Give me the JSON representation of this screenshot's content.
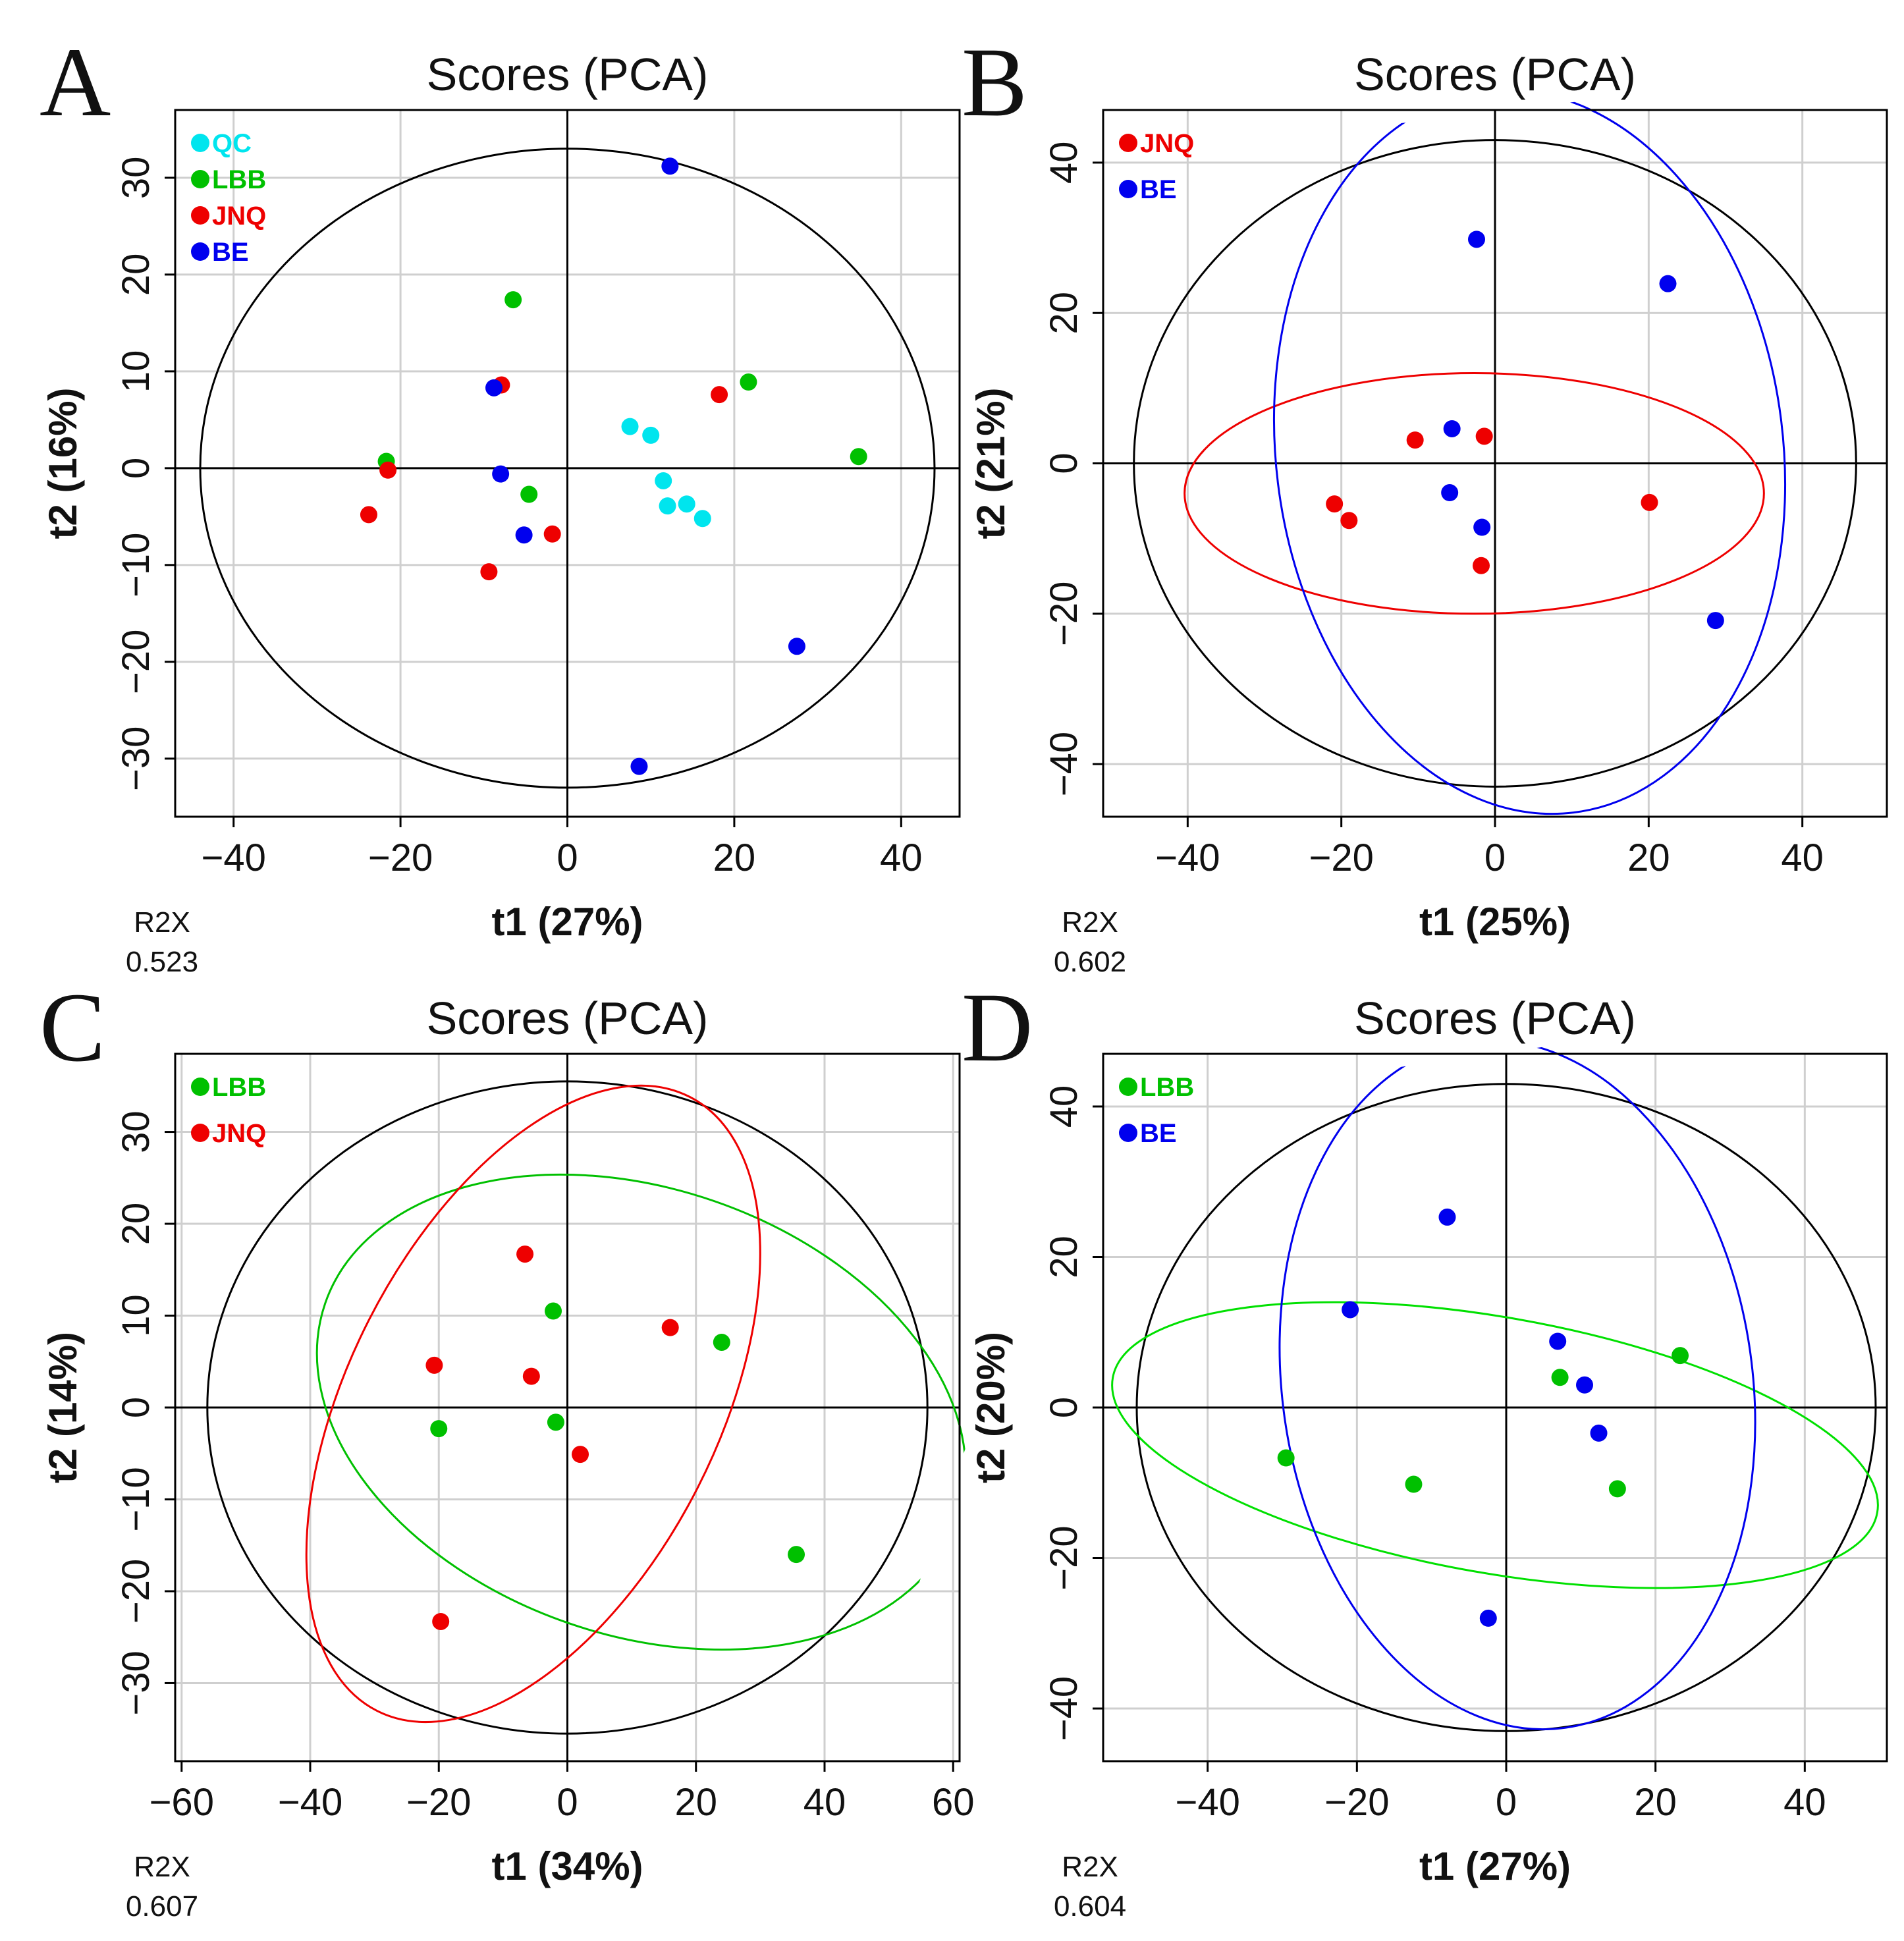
{
  "chart_data": [
    {
      "panel": "A",
      "type": "scatter",
      "title": "Scores (PCA)",
      "xlabel": "t1 (27%)",
      "ylabel": "t2 (16%)",
      "r2x_label": "R2X",
      "r2x_value": "0.523",
      "xlim": [
        -47,
        47
      ],
      "ylim": [
        -36,
        37
      ],
      "xticks": [
        -40,
        -20,
        0,
        20,
        40
      ],
      "yticks": [
        -30,
        -20,
        -10,
        0,
        10,
        20,
        30
      ],
      "grid": true,
      "legend_position": "top-left",
      "hotelling_ellipse": {
        "cx": 0,
        "cy": 0,
        "rx": 44,
        "ry": 33,
        "color": "#000000"
      },
      "group_ellipses": [],
      "series": [
        {
          "name": "QC",
          "color": "#00e5ee",
          "points": [
            [
              7.5,
              4.3
            ],
            [
              10,
              3.4
            ],
            [
              11.5,
              -1.3
            ],
            [
              12,
              -3.9
            ],
            [
              14.3,
              -3.7
            ],
            [
              16.2,
              -5.2
            ]
          ]
        },
        {
          "name": "LBB",
          "color": "#00c000",
          "points": [
            [
              -6.5,
              17.4
            ],
            [
              21.7,
              8.9
            ],
            [
              -21.7,
              0.7
            ],
            [
              34.9,
              1.2
            ],
            [
              -4.6,
              -2.7
            ]
          ]
        },
        {
          "name": "JNQ",
          "color": "#ee0000",
          "points": [
            [
              -7.9,
              8.6
            ],
            [
              18.2,
              7.6
            ],
            [
              -21.5,
              -0.2
            ],
            [
              -23.8,
              -4.8
            ],
            [
              -1.8,
              -6.8
            ],
            [
              -9.4,
              -10.7
            ]
          ]
        },
        {
          "name": "BE",
          "color": "#0000ee",
          "points": [
            [
              12.3,
              31.2
            ],
            [
              -8.8,
              8.3
            ],
            [
              -8,
              -0.6
            ],
            [
              -5.2,
              -6.9
            ],
            [
              27.5,
              -18.4
            ],
            [
              8.6,
              -30.8
            ]
          ]
        }
      ]
    },
    {
      "panel": "B",
      "type": "scatter",
      "title": "Scores (PCA)",
      "xlabel": "t1 (25%)",
      "ylabel": "t2 (21%)",
      "r2x_label": "R2X",
      "r2x_value": "0.602",
      "xlim": [
        -51,
        51
      ],
      "ylim": [
        -47,
        47
      ],
      "xticks": [
        -40,
        -20,
        0,
        20,
        40
      ],
      "yticks": [
        -40,
        -20,
        0,
        20,
        40
      ],
      "grid": true,
      "legend_position": "top-left",
      "hotelling_ellipse": {
        "cx": 0,
        "cy": 0,
        "rx": 47,
        "ry": 43,
        "color": "#000000"
      },
      "group_ellipses": [
        {
          "name": "JNQ",
          "color": "#ee0000",
          "cx": -2.7,
          "cy": -4,
          "rx": 37.7,
          "ry": 16,
          "angle": 0
        },
        {
          "name": "BE",
          "color": "#0000ee",
          "cx": 4.5,
          "cy": 1.5,
          "rx": 33,
          "ry": 48.3,
          "angle": -7
        }
      ],
      "series": [
        {
          "name": "JNQ",
          "color": "#ee0000",
          "points": [
            [
              -10.4,
              3.1
            ],
            [
              -1.4,
              3.6
            ],
            [
              -20.9,
              -5.4
            ],
            [
              -19,
              -7.6
            ],
            [
              20.1,
              -5.2
            ],
            [
              -1.8,
              -13.6
            ]
          ]
        },
        {
          "name": "BE",
          "color": "#0000ee",
          "points": [
            [
              -2.4,
              29.8
            ],
            [
              22.5,
              23.9
            ],
            [
              -5.6,
              4.6
            ],
            [
              -5.9,
              -3.9
            ],
            [
              -1.7,
              -8.5
            ],
            [
              28.7,
              -20.9
            ]
          ]
        }
      ]
    },
    {
      "panel": "C",
      "type": "scatter",
      "title": "Scores (PCA)",
      "xlabel": "t1 (34%)",
      "ylabel": "t2 (14%)",
      "r2x_label": "R2X",
      "r2x_value": "0.607",
      "xlim": [
        -61,
        61
      ],
      "ylim": [
        -38.5,
        38.5
      ],
      "xticks": [
        -60,
        -40,
        -20,
        0,
        20,
        40,
        60
      ],
      "yticks": [
        -30,
        -20,
        -10,
        0,
        10,
        20,
        30
      ],
      "grid": true,
      "legend_position": "top-left",
      "hotelling_ellipse": {
        "cx": 0,
        "cy": 0,
        "rx": 56,
        "ry": 35.5,
        "color": "#000000"
      },
      "group_ellipses": [
        {
          "name": "LBB",
          "color": "#00c000",
          "cx": 11.5,
          "cy": -0.5,
          "rx": 52,
          "ry": 24.3,
          "angle": 19
        },
        {
          "name": "JNQ",
          "color": "#ee0000",
          "cx": -5.3,
          "cy": 0.4,
          "rx": 28.7,
          "ry": 37.5,
          "angle": 27
        }
      ],
      "series": [
        {
          "name": "LBB",
          "color": "#00c000",
          "points": [
            [
              -2.2,
              10.5
            ],
            [
              24,
              7.1
            ],
            [
              -20,
              -2.3
            ],
            [
              -1.8,
              -1.6
            ],
            [
              35.6,
              -16
            ]
          ]
        },
        {
          "name": "JNQ",
          "color": "#ee0000",
          "points": [
            [
              -6.6,
              16.7
            ],
            [
              16,
              8.7
            ],
            [
              -20.7,
              4.6
            ],
            [
              -5.6,
              3.4
            ],
            [
              2,
              -5.1
            ],
            [
              -19.7,
              -23.3
            ]
          ]
        }
      ]
    },
    {
      "panel": "D",
      "type": "scatter",
      "title": "Scores (PCA)",
      "xlabel": "t1 (27%)",
      "ylabel": "t2 (20%)",
      "r2x_label": "R2X",
      "r2x_value": "0.604",
      "xlim": [
        -54,
        51
      ],
      "ylim": [
        -47,
        47
      ],
      "xticks": [
        -40,
        -20,
        0,
        20,
        40
      ],
      "yticks": [
        -40,
        -20,
        0,
        20,
        40
      ],
      "grid": true,
      "legend_position": "top-left",
      "hotelling_ellipse": {
        "cx": 0,
        "cy": 0,
        "rx": 49.5,
        "ry": 43,
        "color": "#000000"
      },
      "group_ellipses": [
        {
          "name": "LBB",
          "color": "#00e000",
          "cx": -1.5,
          "cy": -5,
          "rx": 52,
          "ry": 17,
          "angle": 10
        },
        {
          "name": "BE",
          "color": "#0000ee",
          "cx": 1.5,
          "cy": 3,
          "rx": 31.5,
          "ry": 46,
          "angle": -8
        }
      ],
      "series": [
        {
          "name": "LBB",
          "color": "#00c000",
          "points": [
            [
              7.2,
              4
            ],
            [
              23.3,
              6.9
            ],
            [
              -29.5,
              -6.7
            ],
            [
              -12.4,
              -10.2
            ],
            [
              14.9,
              -10.8
            ]
          ]
        },
        {
          "name": "BE",
          "color": "#0000ee",
          "points": [
            [
              -7.9,
              25.3
            ],
            [
              -20.9,
              13
            ],
            [
              6.9,
              8.8
            ],
            [
              10.5,
              3
            ],
            [
              12.4,
              -3.4
            ],
            [
              -2.4,
              -28
            ]
          ]
        }
      ]
    }
  ]
}
